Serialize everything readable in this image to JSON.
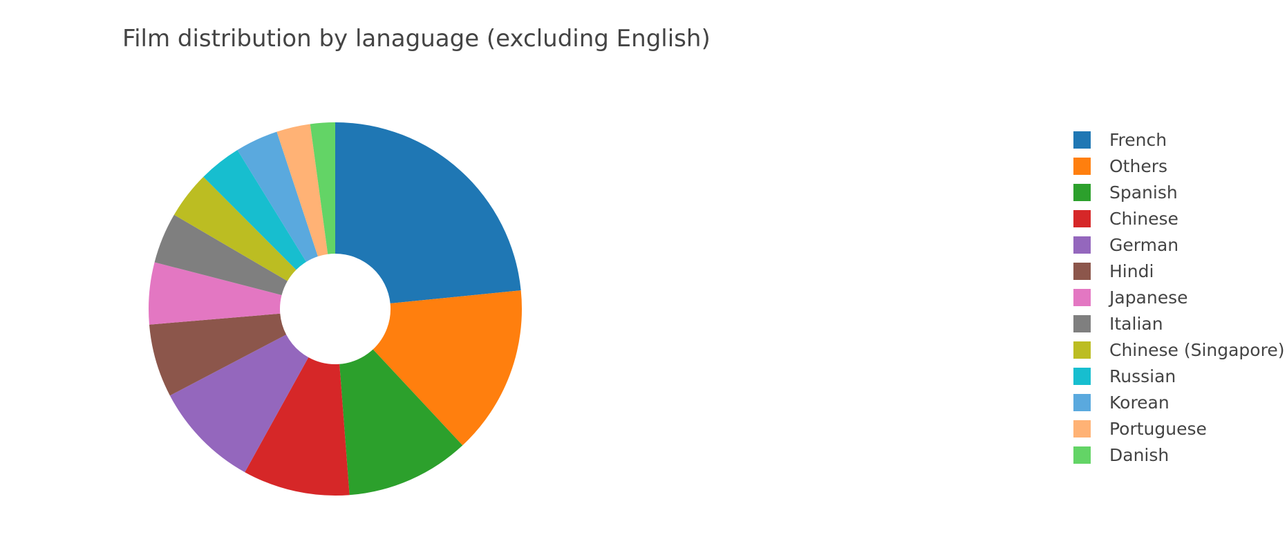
{
  "chart_data": {
    "type": "pie",
    "title": "Film distribution by lanaguage (excluding English)",
    "hole": true,
    "legend_position": "right",
    "slices": [
      {
        "label": "French",
        "value": 24.0,
        "color": "#1f77b4"
      },
      {
        "label": "Others",
        "value": 15.0,
        "color": "#ff7f0e"
      },
      {
        "label": "Spanish",
        "value": 11.0,
        "color": "#2ca02c"
      },
      {
        "label": "Chinese",
        "value": 9.5,
        "color": "#d62728"
      },
      {
        "label": "German",
        "value": 9.5,
        "color": "#9467bd"
      },
      {
        "label": "Hindi",
        "value": 6.5,
        "color": "#8c564b"
      },
      {
        "label": "Japanese",
        "value": 5.5,
        "color": "#e377c2"
      },
      {
        "label": "Italian",
        "value": 4.5,
        "color": "#7f7f7f"
      },
      {
        "label": "Chinese (Singapore)",
        "value": 4.2,
        "color": "#bcbd22"
      },
      {
        "label": "Russian",
        "value": 3.8,
        "color": "#17becf"
      },
      {
        "label": "Korean",
        "value": 3.8,
        "color": "#5aa9de"
      },
      {
        "label": "Portuguese",
        "value": 3.0,
        "color": "#ffb275"
      },
      {
        "label": "Danish",
        "value": 2.2,
        "color": "#63d466"
      }
    ]
  }
}
